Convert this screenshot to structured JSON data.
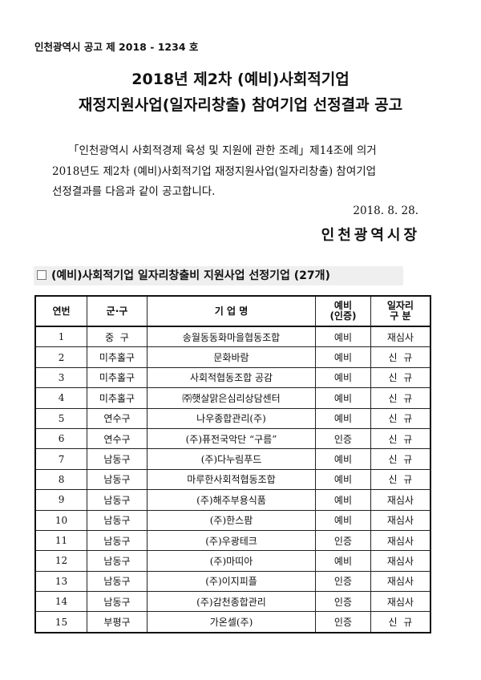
{
  "notice_number": "인천광역시 공고 제 2018 - 1234 호",
  "title": {
    "line1": "2018년 제2차 (예비)사회적기업",
    "line2": "재정지원사업(일자리창출) 참여기업 선정결과 공고"
  },
  "body": {
    "line1": "「인천광역시 사회적경제 육성 및 지원에 관한 조례」제14조에 의거",
    "line2": "2018년도 제2차 (예비)사회적기업 재정지원사업(일자리창출) 참여기업",
    "line3": "선정결과를 다음과 같이 공고합니다."
  },
  "date": "2018.  8.  28.",
  "signature": "인천광역시장",
  "section_title": "(예비)사회적기업 일자리창출비 지원사업 선정기업 (27개)",
  "table": {
    "headers": [
      "연번",
      "군·구",
      "기 업 명",
      "예비\n(인증)",
      "일자리\n구  분"
    ],
    "rows": [
      [
        "1",
        "중  구",
        "송월동동화마을협동조합",
        "예비",
        "재심사"
      ],
      [
        "2",
        "미추홀구",
        "문화바람",
        "예비",
        "신  규"
      ],
      [
        "3",
        "미추홀구",
        "사회적협동조합 공감",
        "예비",
        "신  규"
      ],
      [
        "4",
        "미추홀구",
        "㈜햇살맑은심리상담센터",
        "예비",
        "신  규"
      ],
      [
        "5",
        "연수구",
        "나우종합관리(주)",
        "예비",
        "신  규"
      ],
      [
        "6",
        "연수구",
        "(주)퓨전국악단 “구름”",
        "인증",
        "신  규"
      ],
      [
        "7",
        "남동구",
        "(주)다누림푸드",
        "예비",
        "신  규"
      ],
      [
        "8",
        "남동구",
        "마루한사회적협동조합",
        "예비",
        "신  규"
      ],
      [
        "9",
        "남동구",
        "(주)해주부용식품",
        "예비",
        "재심사"
      ],
      [
        "10",
        "남동구",
        "(주)한스팜",
        "예비",
        "재심사"
      ],
      [
        "11",
        "남동구",
        "(주)우광테크",
        "인증",
        "재심사"
      ],
      [
        "12",
        "남동구",
        "(주)마띠아",
        "예비",
        "재심사"
      ],
      [
        "13",
        "남동구",
        "(주)이지피플",
        "인증",
        "재심사"
      ],
      [
        "14",
        "남동구",
        "(주)감천종합관리",
        "인증",
        "재심사"
      ],
      [
        "15",
        "부평구",
        "가온셀(주)",
        "인증",
        "신  규"
      ]
    ]
  }
}
